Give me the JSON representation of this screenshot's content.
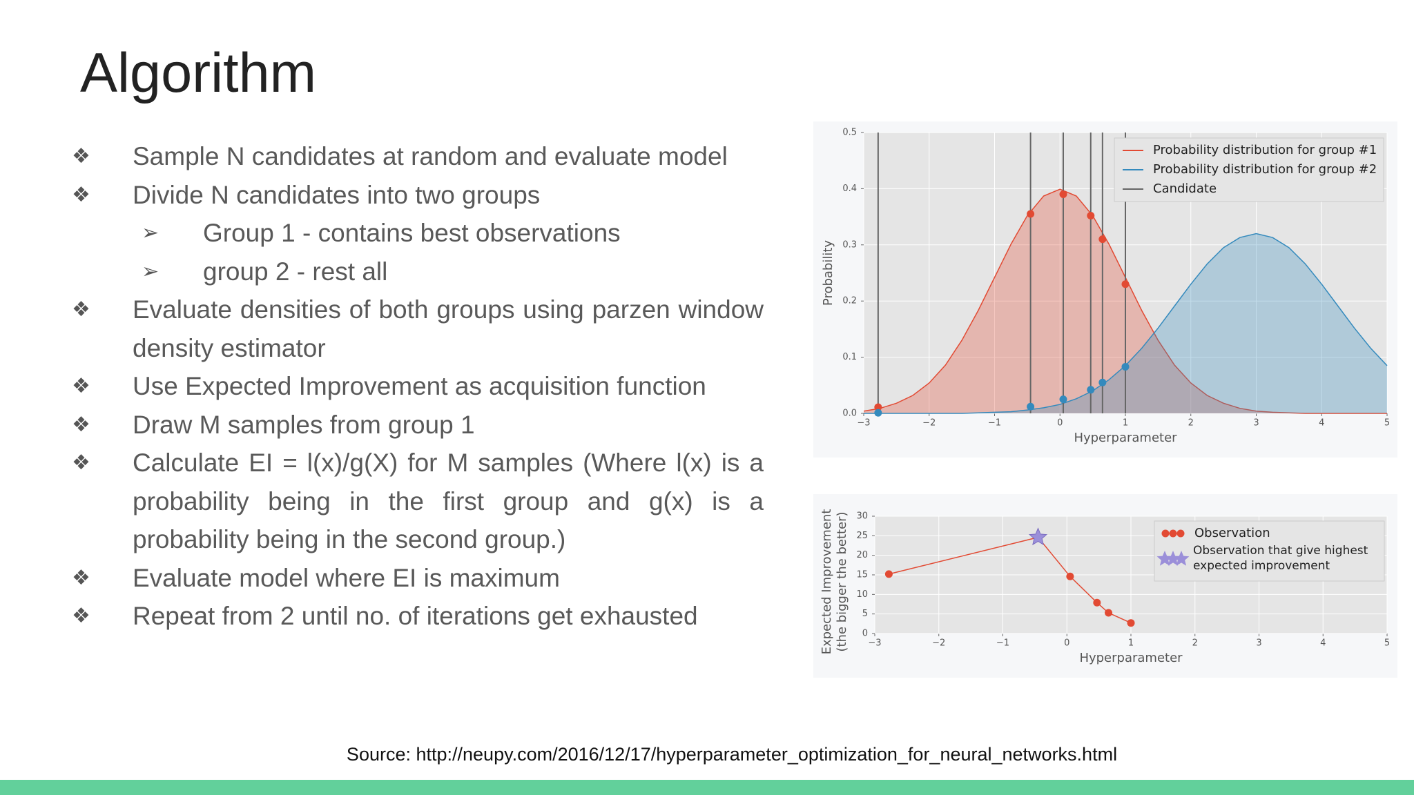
{
  "title": "Algorithm",
  "bullets": [
    {
      "text": "Sample N candidates at random and evaluate model"
    },
    {
      "text": "Divide N candidates into two groups",
      "sub": [
        "Group 1 - contains best observations",
        "group 2 - rest all"
      ]
    },
    {
      "text": "Evaluate densities of both groups using parzen window density estimator"
    },
    {
      "text": "Use Expected Improvement as acquisition function"
    },
    {
      "text": "Draw M samples from group 1"
    },
    {
      "text": "Calculate EI = l(x)/g(X) for M samples (Where l(x) is a probability being in the first group and g(x) is a probability being in the second group.)"
    },
    {
      "text": "Evaluate model where EI is maximum"
    },
    {
      "text": "Repeat from 2 until no. of iterations get exhausted"
    }
  ],
  "source": "Source: http://neupy.com/2016/12/17/hyperparameter_optimization_for_neural_networks.html",
  "chart_data": [
    {
      "type": "area",
      "x_label": "Hyperparameter",
      "y_label": "Probability",
      "x": [
        -3,
        -2.75,
        -2.5,
        -2.25,
        -2,
        -1.75,
        -1.5,
        -1.25,
        -1,
        -0.75,
        -0.5,
        -0.25,
        0,
        0.25,
        0.5,
        0.75,
        1,
        1.25,
        1.5,
        1.75,
        2,
        2.25,
        2.5,
        2.75,
        3,
        3.25,
        3.5,
        3.75,
        4,
        4.25,
        4.5,
        4.75,
        5
      ],
      "series": [
        {
          "name": "Probability distribution for group #1",
          "color": "#e24a33",
          "values": [
            0.004,
            0.009,
            0.018,
            0.032,
            0.054,
            0.086,
            0.13,
            0.183,
            0.242,
            0.301,
            0.352,
            0.387,
            0.399,
            0.387,
            0.352,
            0.301,
            0.242,
            0.183,
            0.13,
            0.086,
            0.054,
            0.032,
            0.018,
            0.009,
            0.004,
            0.002,
            0.001,
            0,
            0,
            0,
            0,
            0,
            0
          ],
          "points": [
            0.011,
            0.355,
            0.39,
            0.352,
            0.31,
            0.23
          ]
        },
        {
          "name": "Probability distribution for group #2",
          "color": "#348abd",
          "values": [
            0,
            0,
            0,
            0,
            0,
            0,
            0,
            0.001,
            0.002,
            0.003,
            0.006,
            0.01,
            0.016,
            0.026,
            0.04,
            0.06,
            0.085,
            0.116,
            0.152,
            0.191,
            0.23,
            0.266,
            0.295,
            0.313,
            0.32,
            0.313,
            0.295,
            0.266,
            0.23,
            0.191,
            0.152,
            0.116,
            0.085
          ],
          "points": [
            0.001,
            0.012,
            0.025,
            0.042,
            0.055,
            0.083
          ]
        }
      ],
      "candidates": {
        "name": "Candidate",
        "color": "#666666",
        "x": [
          -2.78,
          -0.45,
          0.05,
          0.47,
          0.65,
          1.0
        ]
      },
      "xlim": [
        -3,
        5
      ],
      "xticks": [
        {
          "value": -3,
          "label": "−3"
        },
        {
          "value": -2,
          "label": "−2"
        },
        {
          "value": -1,
          "label": "−1"
        },
        0,
        1,
        2,
        3,
        4,
        5
      ],
      "ylim": [
        0,
        0.5
      ],
      "yticks": [
        {
          "value": 0,
          "label": "0.0"
        },
        0.1,
        0.2,
        0.3,
        0.4,
        0.5
      ],
      "grid": true,
      "legend": "upper right"
    },
    {
      "type": "line",
      "x_label": "Hyperparameter",
      "y_label": [
        "Expected Improvement",
        "(the bigger the better)"
      ],
      "series": [
        {
          "name": "Observation",
          "color": "#e24a33",
          "x": [
            -2.78,
            -0.45,
            0.05,
            0.47,
            0.65,
            1.0
          ],
          "values": [
            15.2,
            24.6,
            14.6,
            7.9,
            5.3,
            2.7
          ]
        }
      ],
      "best": {
        "name": "Observation that give highest expected improvement",
        "color": "#9b8fd9",
        "index": 1
      },
      "xlim": [
        -3,
        5
      ],
      "xticks": [
        {
          "value": -3,
          "label": "−3"
        },
        {
          "value": -2,
          "label": "−2"
        },
        {
          "value": -1,
          "label": "−1"
        },
        0,
        1,
        2,
        3,
        4,
        5
      ],
      "ylim": [
        0,
        30
      ],
      "yticks": [
        0,
        5,
        10,
        15,
        20,
        25,
        30
      ],
      "grid": true,
      "legend": "upper right"
    }
  ]
}
